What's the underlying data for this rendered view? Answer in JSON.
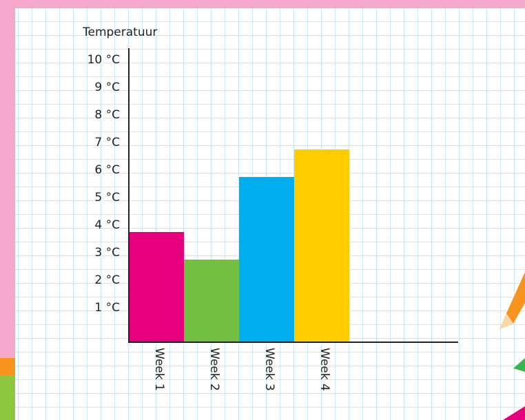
{
  "chart_data": {
    "type": "bar",
    "y_label": "Temperatuur",
    "categories": [
      "Week 1",
      "Week 2",
      "Week 3",
      "Week 4"
    ],
    "values": [
      4,
      3,
      6,
      7
    ],
    "colors": [
      "#e6007e",
      "#72bf44",
      "#00aeef",
      "#ffcc00"
    ],
    "ylim": [
      0,
      10.7
    ],
    "yticks": [
      {
        "value": 1,
        "label": "1 °C"
      },
      {
        "value": 2,
        "label": "2 °C"
      },
      {
        "value": 3,
        "label": "3 °C"
      },
      {
        "value": 4,
        "label": "4 °C"
      },
      {
        "value": 5,
        "label": "5 °C"
      },
      {
        "value": 6,
        "label": "6 °C"
      },
      {
        "value": 7,
        "label": "7 °C"
      },
      {
        "value": 8,
        "label": "8 °C"
      },
      {
        "value": 9,
        "label": "9 °C"
      },
      {
        "value": 10,
        "label": "10 °C"
      }
    ]
  }
}
